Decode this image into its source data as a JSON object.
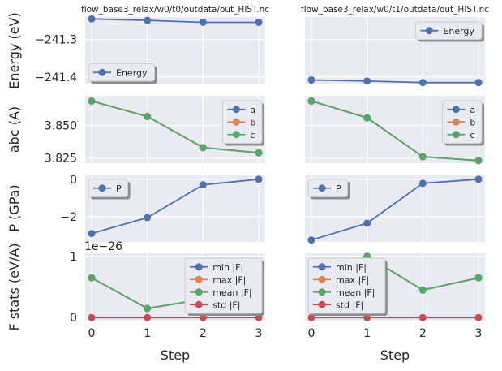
{
  "colors": {
    "blue": "#4c72b0",
    "orange": "#dd8452",
    "green": "#55a868",
    "red": "#c44e52",
    "panel_bg": "#eaeaf2",
    "grid": "#ffffff"
  },
  "chart_data": [
    {
      "type": "line",
      "title": "flow_base3_relax/w0/t0/outdata/out_HIST.nc",
      "ylabel": "Energy (eV)",
      "xlabel": "",
      "ylim": [
        -241.42,
        -241.24
      ],
      "yticks": [
        -241.3,
        -241.4
      ],
      "ytick_labels": [
        "−241.3",
        "−241.4"
      ],
      "x": [
        0,
        1,
        2,
        3
      ],
      "grid": true,
      "legend": "lower-left",
      "series": [
        {
          "name": "Energy",
          "values": [
            -241.245,
            -241.249,
            -241.254,
            -241.254
          ]
        }
      ]
    },
    {
      "type": "line",
      "title": "flow_base3_relax/w0/t1/outdata/out_HIST.nc",
      "ylabel": "",
      "xlabel": "",
      "ylim": [
        -241.42,
        -241.24
      ],
      "yticks": [
        -241.3,
        -241.4
      ],
      "ytick_labels": [
        "",
        ""
      ],
      "x": [
        0,
        1,
        2,
        3
      ],
      "grid": true,
      "legend": "upper-right",
      "series": [
        {
          "name": "Energy",
          "values": [
            -241.408,
            -241.411,
            -241.415,
            -241.415
          ]
        }
      ]
    },
    {
      "type": "line",
      "title": "",
      "ylabel": "abc (A)",
      "xlabel": "",
      "ylim": [
        3.821,
        3.873
      ],
      "yticks": [
        3.85,
        3.825
      ],
      "ytick_labels": [
        "3.850",
        "3.825"
      ],
      "x": [
        0,
        1,
        2,
        3
      ],
      "grid": true,
      "legend": "upper-right",
      "series": [
        {
          "name": "a",
          "values": [
            3.869,
            3.857,
            3.833,
            3.829
          ]
        },
        {
          "name": "b",
          "values": [
            3.869,
            3.857,
            3.833,
            3.829
          ]
        },
        {
          "name": "c",
          "values": [
            3.869,
            3.857,
            3.833,
            3.829
          ]
        }
      ]
    },
    {
      "type": "line",
      "title": "",
      "ylabel": "",
      "xlabel": "",
      "ylim": [
        3.821,
        3.873
      ],
      "yticks": [
        3.85,
        3.825
      ],
      "ytick_labels": [
        "",
        ""
      ],
      "x": [
        0,
        1,
        2,
        3
      ],
      "grid": true,
      "legend": "upper-right",
      "series": [
        {
          "name": "a",
          "values": [
            3.869,
            3.856,
            3.826,
            3.823
          ]
        },
        {
          "name": "b",
          "values": [
            3.869,
            3.856,
            3.826,
            3.823
          ]
        },
        {
          "name": "c",
          "values": [
            3.869,
            3.856,
            3.826,
            3.823
          ]
        }
      ]
    },
    {
      "type": "line",
      "title": "",
      "ylabel": "P (GPa)",
      "xlabel": "",
      "ylim": [
        -3.35,
        0.25
      ],
      "yticks": [
        0,
        -2
      ],
      "ytick_labels": [
        "0",
        "−2"
      ],
      "x": [
        0,
        1,
        2,
        3
      ],
      "grid": true,
      "legend": "upper-left",
      "series": [
        {
          "name": "P",
          "values": [
            -2.9,
            -2.05,
            -0.3,
            0.0
          ]
        }
      ]
    },
    {
      "type": "line",
      "title": "",
      "ylabel": "",
      "xlabel": "",
      "ylim": [
        -3.35,
        0.25
      ],
      "yticks": [
        0,
        -2
      ],
      "ytick_labels": [
        "",
        ""
      ],
      "x": [
        0,
        1,
        2,
        3
      ],
      "grid": true,
      "legend": "upper-left",
      "series": [
        {
          "name": "P",
          "values": [
            -3.25,
            -2.35,
            -0.22,
            0.0
          ]
        }
      ]
    },
    {
      "type": "line",
      "title": "",
      "ylabel": "F stats (eV/A)",
      "xlabel": "Step",
      "ylim": [
        -0.05,
        1.05
      ],
      "yticks": [
        1,
        0
      ],
      "ytick_labels": [
        "1",
        "0"
      ],
      "offset_text": "1e−26",
      "xticks": [
        "0",
        "1",
        "2",
        "3"
      ],
      "x": [
        0,
        1,
        2,
        3
      ],
      "grid": true,
      "legend": "upper-right",
      "series": [
        {
          "name": "min |F|",
          "values": [
            0.65,
            0.15,
            0.3,
            0.3
          ]
        },
        {
          "name": "max |F|",
          "values": [
            0.65,
            0.15,
            0.3,
            0.3
          ]
        },
        {
          "name": "mean |F|",
          "values": [
            0.65,
            0.15,
            0.3,
            0.3
          ]
        },
        {
          "name": "std |F|",
          "values": [
            0,
            0,
            0,
            0
          ]
        }
      ]
    },
    {
      "type": "line",
      "title": "",
      "ylabel": "",
      "xlabel": "Step",
      "ylim": [
        -0.05,
        1.05
      ],
      "yticks": [
        1,
        0
      ],
      "ytick_labels": [
        "",
        ""
      ],
      "xticks": [
        "0",
        "1",
        "2",
        "3"
      ],
      "x": [
        0,
        1,
        2,
        3
      ],
      "grid": true,
      "legend": "upper-left",
      "series": [
        {
          "name": "min |F|",
          "values": [
            0.65,
            1.0,
            0.45,
            0.65
          ]
        },
        {
          "name": "max |F|",
          "values": [
            0.65,
            1.0,
            0.45,
            0.65
          ]
        },
        {
          "name": "mean |F|",
          "values": [
            0.65,
            1.0,
            0.45,
            0.65
          ]
        },
        {
          "name": "std |F|",
          "values": [
            0,
            0,
            0,
            0
          ]
        }
      ]
    }
  ]
}
